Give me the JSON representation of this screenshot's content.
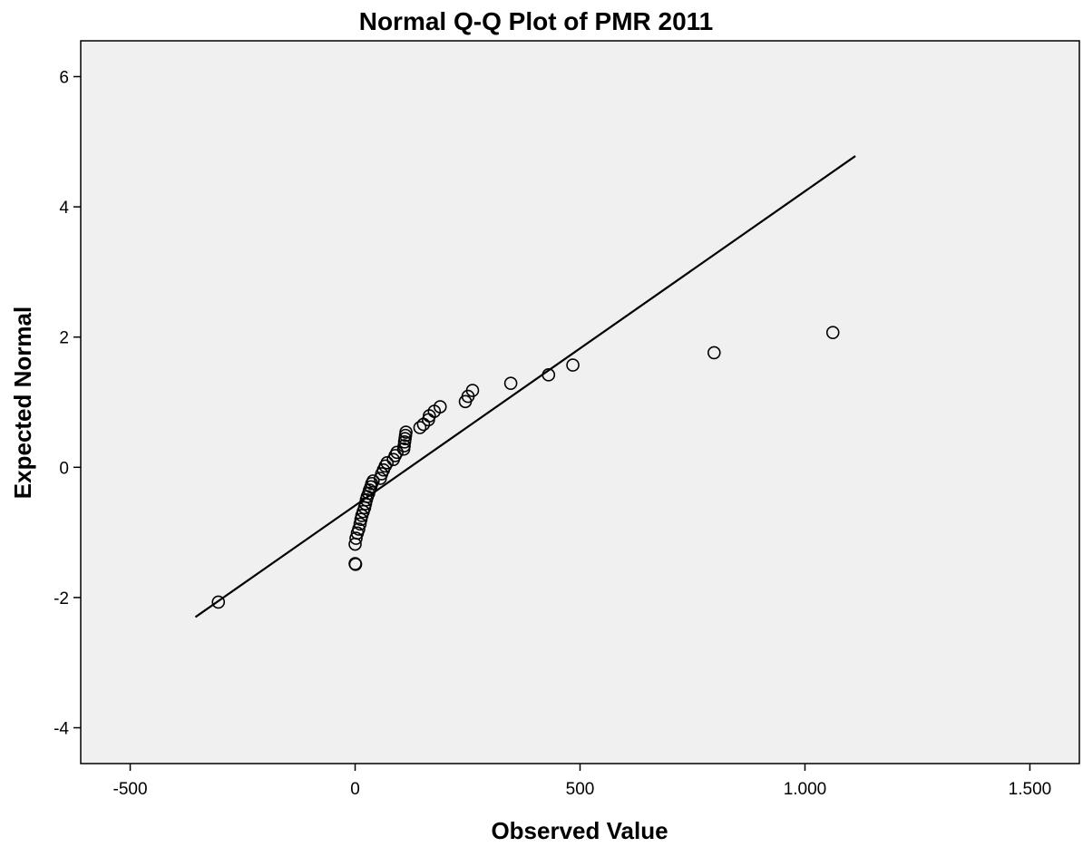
{
  "chart_data": {
    "type": "scatter",
    "title": "Normal Q-Q Plot of PMR 2011",
    "xlabel": "Observed Value",
    "ylabel": "Expected Normal",
    "xlim": [
      -610,
      1610
    ],
    "ylim": [
      -4.55,
      6.55
    ],
    "x_ticks": [
      {
        "value": -500,
        "label": "-500"
      },
      {
        "value": 0,
        "label": "0"
      },
      {
        "value": 500,
        "label": "500"
      },
      {
        "value": 1000,
        "label": "1.000"
      },
      {
        "value": 1500,
        "label": "1.500"
      }
    ],
    "y_ticks": [
      {
        "value": -4,
        "label": "-4"
      },
      {
        "value": -2,
        "label": "-2"
      },
      {
        "value": 0,
        "label": "0"
      },
      {
        "value": 2,
        "label": "2"
      },
      {
        "value": 4,
        "label": "4"
      },
      {
        "value": 6,
        "label": "6"
      }
    ],
    "grid": false,
    "reference_line": {
      "x": [
        -355,
        1112
      ],
      "y": [
        -2.3,
        4.78
      ]
    },
    "points": [
      {
        "x": -304,
        "y": -2.07
      },
      {
        "x": 0,
        "y": -1.48
      },
      {
        "x": 1,
        "y": -1.49
      },
      {
        "x": 0,
        "y": -1.18
      },
      {
        "x": 2,
        "y": -1.09
      },
      {
        "x": 5,
        "y": -1.01
      },
      {
        "x": 8,
        "y": -0.95
      },
      {
        "x": 11,
        "y": -0.87
      },
      {
        "x": 13,
        "y": -0.8
      },
      {
        "x": 15,
        "y": -0.74
      },
      {
        "x": 18,
        "y": -0.68
      },
      {
        "x": 21,
        "y": -0.62
      },
      {
        "x": 23,
        "y": -0.56
      },
      {
        "x": 25,
        "y": -0.5
      },
      {
        "x": 27,
        "y": -0.45
      },
      {
        "x": 30,
        "y": -0.4
      },
      {
        "x": 32,
        "y": -0.35
      },
      {
        "x": 35,
        "y": -0.3
      },
      {
        "x": 37,
        "y": -0.25
      },
      {
        "x": 40,
        "y": -0.21
      },
      {
        "x": 56,
        "y": -0.17
      },
      {
        "x": 59,
        "y": -0.1
      },
      {
        "x": 63,
        "y": -0.04
      },
      {
        "x": 67,
        "y": 0.02
      },
      {
        "x": 71,
        "y": 0.07
      },
      {
        "x": 85,
        "y": 0.12
      },
      {
        "x": 89,
        "y": 0.18
      },
      {
        "x": 93,
        "y": 0.23
      },
      {
        "x": 108,
        "y": 0.28
      },
      {
        "x": 109,
        "y": 0.33
      },
      {
        "x": 110,
        "y": 0.39
      },
      {
        "x": 111,
        "y": 0.44
      },
      {
        "x": 112,
        "y": 0.49
      },
      {
        "x": 113,
        "y": 0.54
      },
      {
        "x": 144,
        "y": 0.61
      },
      {
        "x": 152,
        "y": 0.66
      },
      {
        "x": 163,
        "y": 0.73
      },
      {
        "x": 165,
        "y": 0.79
      },
      {
        "x": 176,
        "y": 0.86
      },
      {
        "x": 189,
        "y": 0.93
      },
      {
        "x": 245,
        "y": 1.01
      },
      {
        "x": 251,
        "y": 1.09
      },
      {
        "x": 261,
        "y": 1.18
      },
      {
        "x": 346,
        "y": 1.29
      },
      {
        "x": 430,
        "y": 1.42
      },
      {
        "x": 484,
        "y": 1.57
      },
      {
        "x": 798,
        "y": 1.76
      },
      {
        "x": 1062,
        "y": 2.07
      }
    ]
  }
}
